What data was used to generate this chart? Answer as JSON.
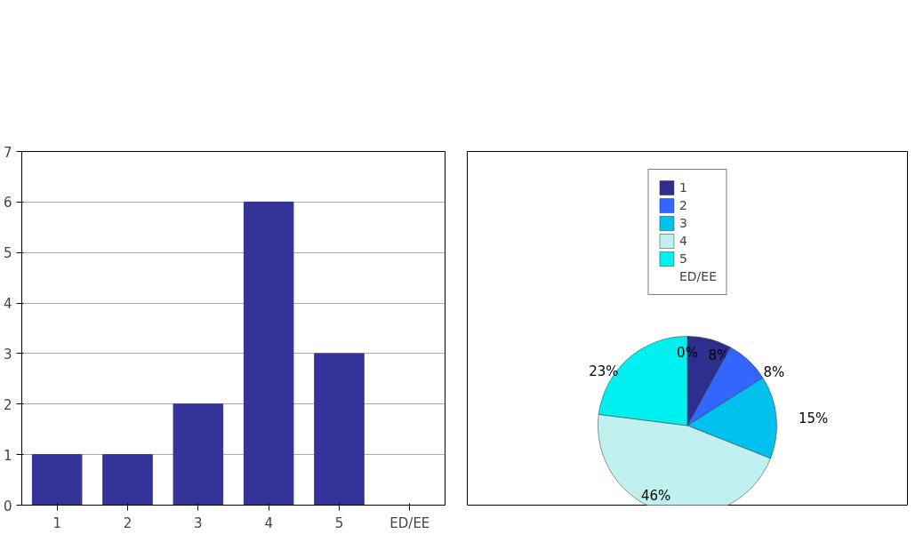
{
  "chart_data": [
    {
      "type": "bar",
      "categories": [
        "1",
        "2",
        "3",
        "4",
        "5",
        "ED/EE"
      ],
      "values": [
        1,
        1,
        2,
        6,
        3,
        0
      ],
      "color": "#333399",
      "ylim": [
        0,
        7
      ],
      "yticks": [
        0,
        1,
        2,
        3,
        4,
        5,
        6,
        7
      ],
      "grid": "y"
    },
    {
      "type": "pie",
      "categories": [
        "1",
        "2",
        "3",
        "4",
        "5",
        "ED/EE"
      ],
      "values": [
        8,
        8,
        15,
        46,
        23,
        0
      ],
      "colors": [
        "#2e2e8f",
        "#3366ff",
        "#00c0ee",
        "#c0f0f0",
        "#00f0f0",
        "#33cccc"
      ],
      "value_labels": [
        "8%",
        "8%",
        "15%",
        "46%",
        "23%",
        "0%"
      ],
      "legend": "top"
    }
  ]
}
